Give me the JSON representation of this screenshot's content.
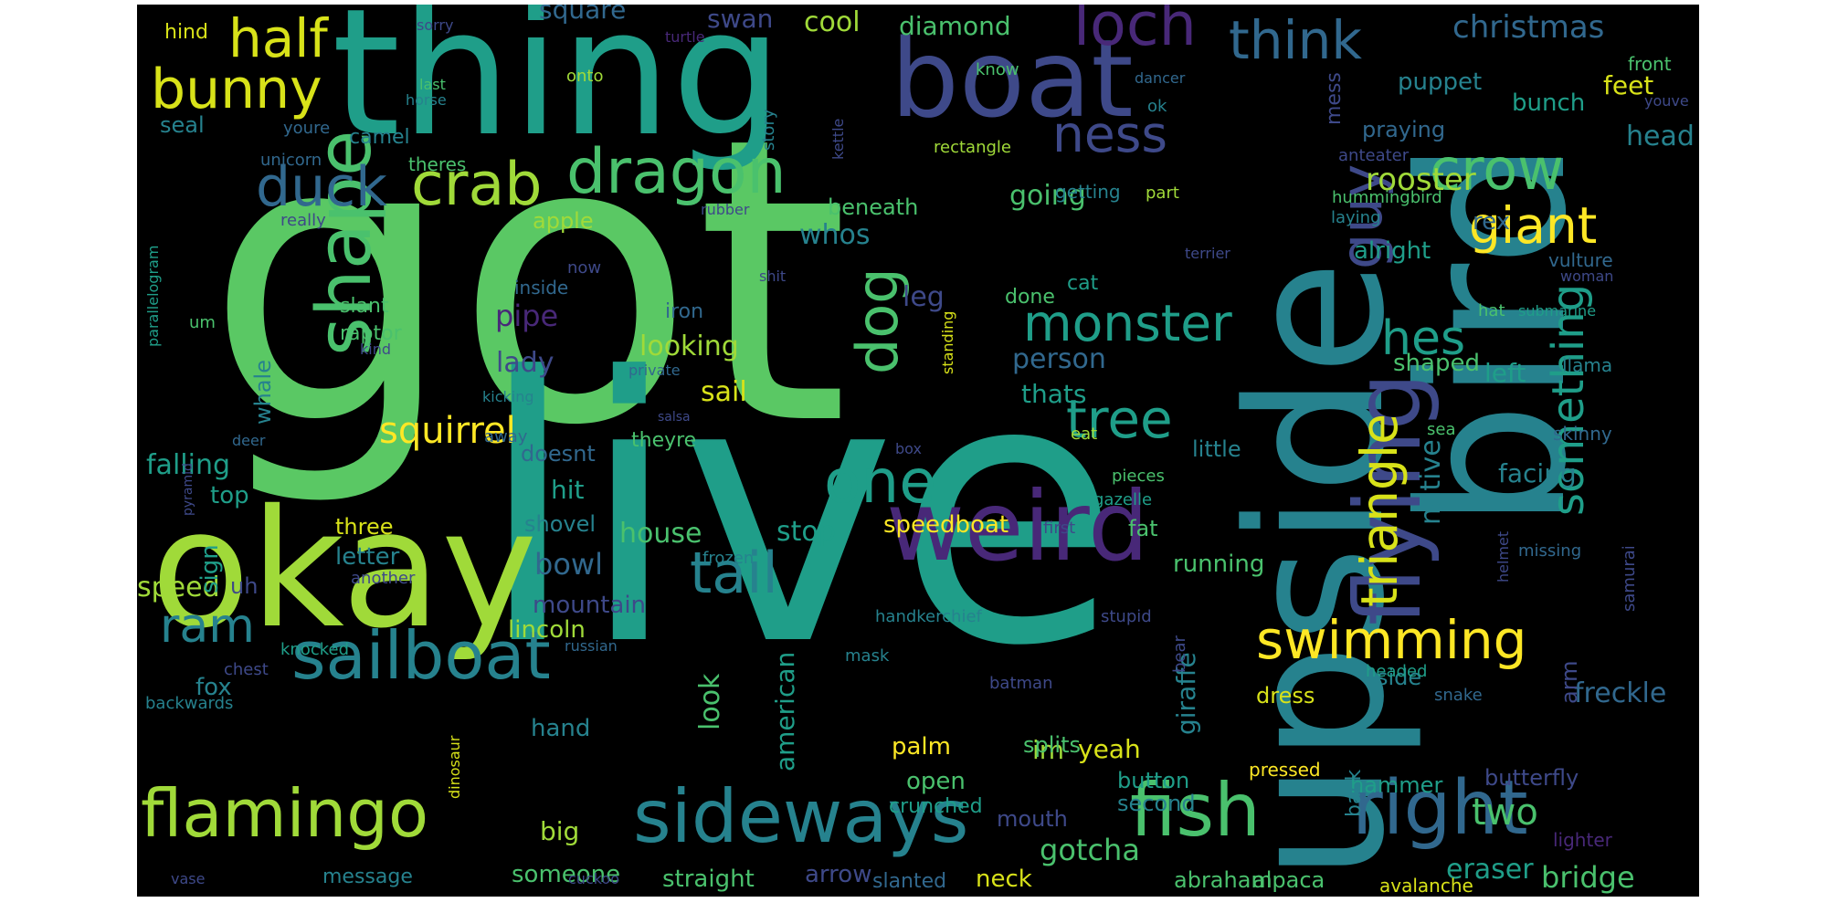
{
  "background": "#000000",
  "colormap": "viridis",
  "palette": {
    "green": "#5ac864",
    "teal": "#1f9e89",
    "tealdark": "#26828e",
    "blue": "#31688e",
    "indigo": "#3e4989",
    "purple": "#482878",
    "lime": "#a0da39",
    "yellow": "#fde725",
    "olive": "#d8e219",
    "mint": "#4ac16d"
  },
  "words": [
    {
      "text": "got",
      "color": "green"
    },
    {
      "text": "live",
      "color": "teal"
    },
    {
      "text": "upside",
      "color": "tealdark"
    },
    {
      "text": "bird",
      "color": "tealdark"
    },
    {
      "text": "thing",
      "color": "teal"
    },
    {
      "text": "okay",
      "color": "lime"
    },
    {
      "text": "boat",
      "color": "indigo"
    },
    {
      "text": "weird",
      "color": "purple"
    },
    {
      "text": "flying",
      "color": "indigo"
    },
    {
      "text": "sideways",
      "color": "tealdark"
    },
    {
      "text": "right",
      "color": "blue"
    },
    {
      "text": "fish",
      "color": "mint"
    },
    {
      "text": "flamingo",
      "color": "lime"
    },
    {
      "text": "sailboat",
      "color": "tealdark"
    },
    {
      "text": "shape",
      "color": "mint"
    },
    {
      "text": "dragon",
      "color": "mint"
    },
    {
      "text": "crab",
      "color": "lime"
    },
    {
      "text": "duck",
      "color": "blue"
    },
    {
      "text": "bunny",
      "color": "olive"
    },
    {
      "text": "half",
      "color": "olive"
    },
    {
      "text": "loch",
      "color": "purple"
    },
    {
      "text": "think",
      "color": "blue"
    },
    {
      "text": "ness",
      "color": "indigo"
    },
    {
      "text": "crow",
      "color": "mint"
    },
    {
      "text": "giant",
      "color": "yellow"
    },
    {
      "text": "guy",
      "color": "indigo"
    },
    {
      "text": "hes",
      "color": "teal"
    },
    {
      "text": "monster",
      "color": "teal"
    },
    {
      "text": "tree",
      "color": "teal"
    },
    {
      "text": "one",
      "color": "teal"
    },
    {
      "text": "dog",
      "color": "mint"
    },
    {
      "text": "tail",
      "color": "tealdark"
    },
    {
      "text": "triangle",
      "color": "olive"
    },
    {
      "text": "something",
      "color": "teal"
    },
    {
      "text": "swimming",
      "color": "yellow"
    },
    {
      "text": "ram",
      "color": "tealdark"
    },
    {
      "text": "two",
      "color": "mint"
    },
    {
      "text": "christmas",
      "color": "blue"
    },
    {
      "text": "rooster",
      "color": "lime"
    },
    {
      "text": "squirrel",
      "color": "yellow"
    },
    {
      "text": "gotcha",
      "color": "mint"
    },
    {
      "text": "bridge",
      "color": "mint"
    },
    {
      "text": "eraser",
      "color": "teal"
    },
    {
      "text": "freckle",
      "color": "blue"
    },
    {
      "text": "speed",
      "color": "lime"
    },
    {
      "text": "falling",
      "color": "teal"
    },
    {
      "text": "house",
      "color": "mint"
    },
    {
      "text": "stop",
      "color": "teal"
    },
    {
      "text": "look",
      "color": "mint"
    },
    {
      "text": "american",
      "color": "teal"
    },
    {
      "text": "bowl",
      "color": "blue"
    },
    {
      "text": "pipe",
      "color": "purple"
    },
    {
      "text": "lady",
      "color": "indigo"
    },
    {
      "text": "looking",
      "color": "lime"
    },
    {
      "text": "sail",
      "color": "olive"
    },
    {
      "text": "leg",
      "color": "indigo"
    },
    {
      "text": "person",
      "color": "blue"
    },
    {
      "text": "thats",
      "color": "teal"
    },
    {
      "text": "whos",
      "color": "tealdark"
    },
    {
      "text": "going",
      "color": "mint"
    },
    {
      "text": "beneath",
      "color": "mint"
    },
    {
      "text": "apple",
      "color": "lime"
    },
    {
      "text": "cool",
      "color": "lime"
    },
    {
      "text": "diamond",
      "color": "mint"
    },
    {
      "text": "swan",
      "color": "indigo"
    },
    {
      "text": "square",
      "color": "blue"
    },
    {
      "text": "feet",
      "color": "olive"
    },
    {
      "text": "bunch",
      "color": "teal"
    },
    {
      "text": "puppet",
      "color": "tealdark"
    },
    {
      "text": "head",
      "color": "tealdark"
    },
    {
      "text": "alright",
      "color": "teal"
    },
    {
      "text": "rex",
      "color": "blue"
    },
    {
      "text": "shaped",
      "color": "mint"
    },
    {
      "text": "left",
      "color": "teal"
    },
    {
      "text": "little",
      "color": "tealdark"
    },
    {
      "text": "facing",
      "color": "tealdark"
    },
    {
      "text": "native",
      "color": "tealdark"
    },
    {
      "text": "mountain",
      "color": "indigo"
    },
    {
      "text": "lincoln",
      "color": "lime"
    },
    {
      "text": "hit",
      "color": "teal"
    },
    {
      "text": "letter",
      "color": "tealdark"
    },
    {
      "text": "three",
      "color": "olive"
    },
    {
      "text": "top",
      "color": "teal"
    },
    {
      "text": "sign",
      "color": "teal"
    },
    {
      "text": "fox",
      "color": "tealdark"
    },
    {
      "text": "hand",
      "color": "tealdark"
    },
    {
      "text": "big",
      "color": "lime"
    },
    {
      "text": "someone",
      "color": "mint"
    },
    {
      "text": "straight",
      "color": "mint"
    },
    {
      "text": "arrow",
      "color": "indigo"
    },
    {
      "text": "neck",
      "color": "olive"
    },
    {
      "text": "palm",
      "color": "yellow"
    },
    {
      "text": "open",
      "color": "mint"
    },
    {
      "text": "im",
      "color": "lime"
    },
    {
      "text": "yeah",
      "color": "olive"
    },
    {
      "text": "button",
      "color": "teal"
    },
    {
      "text": "second",
      "color": "tealdark"
    },
    {
      "text": "mouth",
      "color": "indigo"
    },
    {
      "text": "giraffe",
      "color": "tealdark"
    },
    {
      "text": "dress",
      "color": "olive"
    },
    {
      "text": "side",
      "color": "tealdark"
    },
    {
      "text": "arm",
      "color": "indigo"
    },
    {
      "text": "butterfly",
      "color": "indigo"
    },
    {
      "text": "hammer",
      "color": "teal"
    },
    {
      "text": "speedboat",
      "color": "yellow"
    },
    {
      "text": "crunched",
      "color": "teal"
    },
    {
      "text": "running",
      "color": "mint"
    },
    {
      "text": "fat",
      "color": "mint"
    },
    {
      "text": "splits",
      "color": "mint"
    },
    {
      "text": "abraham",
      "color": "mint"
    },
    {
      "text": "alpaca",
      "color": "mint"
    },
    {
      "text": "message",
      "color": "tealdark"
    },
    {
      "text": "slanted",
      "color": "blue"
    },
    {
      "text": "avalanche",
      "color": "olive"
    },
    {
      "text": "pressed",
      "color": "yellow"
    },
    {
      "text": "back",
      "color": "tealdark"
    },
    {
      "text": "doesnt",
      "color": "blue"
    },
    {
      "text": "theyre",
      "color": "mint"
    },
    {
      "text": "shovel",
      "color": "tealdark"
    },
    {
      "text": "uh",
      "color": "indigo"
    },
    {
      "text": "whale",
      "color": "tealdark"
    },
    {
      "text": "raptor",
      "color": "mint"
    },
    {
      "text": "slant",
      "color": "mint"
    },
    {
      "text": "iron",
      "color": "blue"
    },
    {
      "text": "camel",
      "color": "tealdark"
    },
    {
      "text": "seal",
      "color": "tealdark"
    },
    {
      "text": "hind",
      "color": "olive"
    },
    {
      "text": "youre",
      "color": "blue"
    },
    {
      "text": "unicorn",
      "color": "blue"
    },
    {
      "text": "theres",
      "color": "mint"
    },
    {
      "text": "really",
      "color": "indigo"
    },
    {
      "text": "praying",
      "color": "blue"
    },
    {
      "text": "mess",
      "color": "indigo"
    },
    {
      "text": "anteater",
      "color": "indigo"
    },
    {
      "text": "hummingbird",
      "color": "mint"
    },
    {
      "text": "laying",
      "color": "tealdark"
    },
    {
      "text": "vulture",
      "color": "blue"
    },
    {
      "text": "submarine",
      "color": "teal"
    },
    {
      "text": "hat",
      "color": "mint"
    },
    {
      "text": "llama",
      "color": "tealdark"
    },
    {
      "text": "woman",
      "color": "indigo"
    },
    {
      "text": "skinny",
      "color": "blue"
    },
    {
      "text": "sea",
      "color": "mint"
    },
    {
      "text": "helmet",
      "color": "indigo"
    },
    {
      "text": "samurai",
      "color": "indigo"
    },
    {
      "text": "missing",
      "color": "blue"
    },
    {
      "text": "headed",
      "color": "teal"
    },
    {
      "text": "snake",
      "color": "blue"
    },
    {
      "text": "lighter",
      "color": "purple"
    },
    {
      "text": "front",
      "color": "mint"
    },
    {
      "text": "youve",
      "color": "indigo"
    },
    {
      "text": "ok",
      "color": "tealdark"
    },
    {
      "text": "dancer",
      "color": "blue"
    },
    {
      "text": "rectangle",
      "color": "lime"
    },
    {
      "text": "story",
      "color": "tealdark"
    },
    {
      "text": "kettle",
      "color": "indigo"
    },
    {
      "text": "getting",
      "color": "tealdark"
    },
    {
      "text": "part",
      "color": "lime"
    },
    {
      "text": "terrier",
      "color": "indigo"
    },
    {
      "text": "done",
      "color": "mint"
    },
    {
      "text": "cat",
      "color": "teal"
    },
    {
      "text": "standing",
      "color": "olive"
    },
    {
      "text": "eat",
      "color": "lime"
    },
    {
      "text": "pieces",
      "color": "mint"
    },
    {
      "text": "gazelle",
      "color": "teal"
    },
    {
      "text": "first",
      "color": "indigo"
    },
    {
      "text": "frozen",
      "color": "tealdark"
    },
    {
      "text": "handkerchief",
      "color": "tealdark"
    },
    {
      "text": "stupid",
      "color": "indigo"
    },
    {
      "text": "bear",
      "color": "indigo"
    },
    {
      "text": "batman",
      "color": "indigo"
    },
    {
      "text": "mask",
      "color": "tealdark"
    },
    {
      "text": "russian",
      "color": "blue"
    },
    {
      "text": "cuckoo",
      "color": "indigo"
    },
    {
      "text": "vase",
      "color": "indigo"
    },
    {
      "text": "dinosaur",
      "color": "olive"
    },
    {
      "text": "knocked",
      "color": "teal"
    },
    {
      "text": "chest",
      "color": "indigo"
    },
    {
      "text": "backwards",
      "color": "tealdark"
    },
    {
      "text": "another",
      "color": "indigo"
    },
    {
      "text": "pyramid",
      "color": "indigo"
    },
    {
      "text": "deer",
      "color": "blue"
    },
    {
      "text": "kind",
      "color": "indigo"
    },
    {
      "text": "um",
      "color": "mint"
    },
    {
      "text": "parallelogram",
      "color": "teal"
    },
    {
      "text": "kicking",
      "color": "tealdark"
    },
    {
      "text": "private",
      "color": "blue"
    },
    {
      "text": "salsa",
      "color": "indigo"
    },
    {
      "text": "inside",
      "color": "blue"
    },
    {
      "text": "now",
      "color": "indigo"
    },
    {
      "text": "shit",
      "color": "indigo"
    },
    {
      "text": "away",
      "color": "blue"
    },
    {
      "text": "box",
      "color": "indigo"
    },
    {
      "text": "onto",
      "color": "lime"
    },
    {
      "text": "last",
      "color": "mint"
    },
    {
      "text": "horse",
      "color": "tealdark"
    },
    {
      "text": "sorry",
      "color": "indigo"
    },
    {
      "text": "turtle",
      "color": "purple"
    },
    {
      "text": "know",
      "color": "mint"
    },
    {
      "text": "rubber",
      "color": "indigo"
    },
    {
      "text": "away2",
      "color": "blue"
    }
  ]
}
